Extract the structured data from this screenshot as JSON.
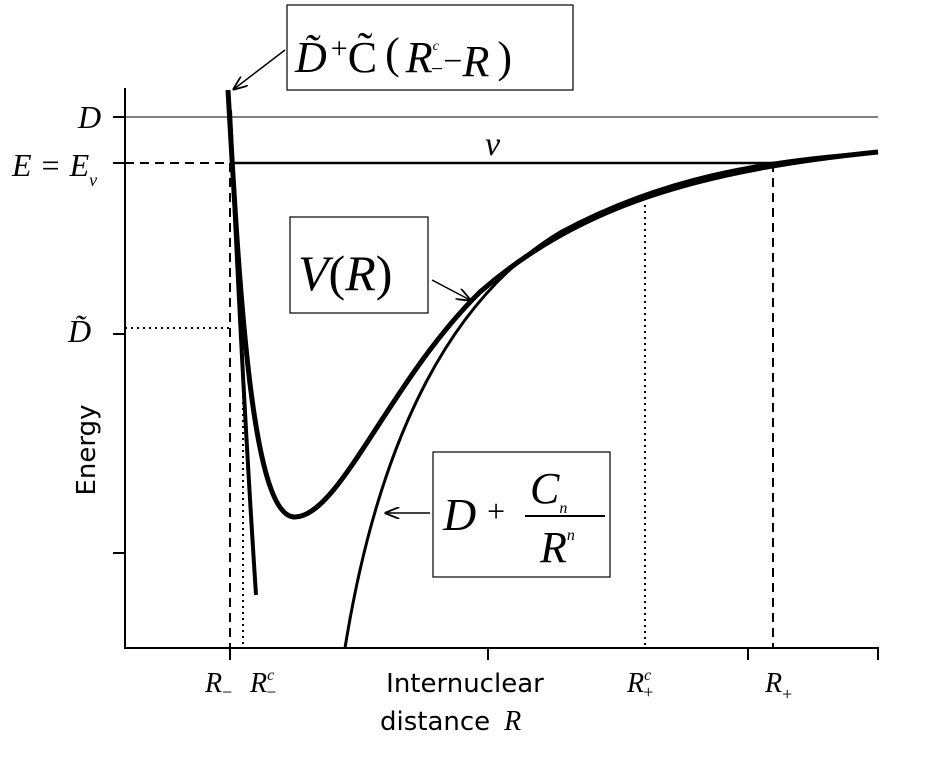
{
  "axes": {
    "y_label": "Energy",
    "x_label_line1": "Internuclear",
    "x_label_line2": "distance",
    "x_label_var": "R"
  },
  "levels": {
    "D": "D",
    "E_lhs": "E",
    "E_eq": "=",
    "E_rhs": "E",
    "E_sub": "v",
    "D_tilde": "D̃",
    "v": "v"
  },
  "x_marks": [
    {
      "base": "R",
      "sub": "−"
    },
    {
      "base": "R",
      "sub": "−",
      "sup": "c"
    },
    {
      "base": "R",
      "sub": "+",
      "sup": "c"
    },
    {
      "base": "R",
      "sub": "+"
    }
  ],
  "boxes": {
    "wall": {
      "a": "D̃",
      "plus": "+",
      "b": "C̃",
      "open": "(",
      "r": "R",
      "sup": "c",
      "sub": "−",
      "minus": "−",
      "r2": "R",
      "close": ")"
    },
    "potential": {
      "v": "V",
      "open": "(",
      "r": "R",
      "close": ")"
    },
    "longrange": {
      "d": "D",
      "plus": "+",
      "num": "C",
      "num_sub": "n",
      "den": "R",
      "den_sup": "n"
    }
  }
}
